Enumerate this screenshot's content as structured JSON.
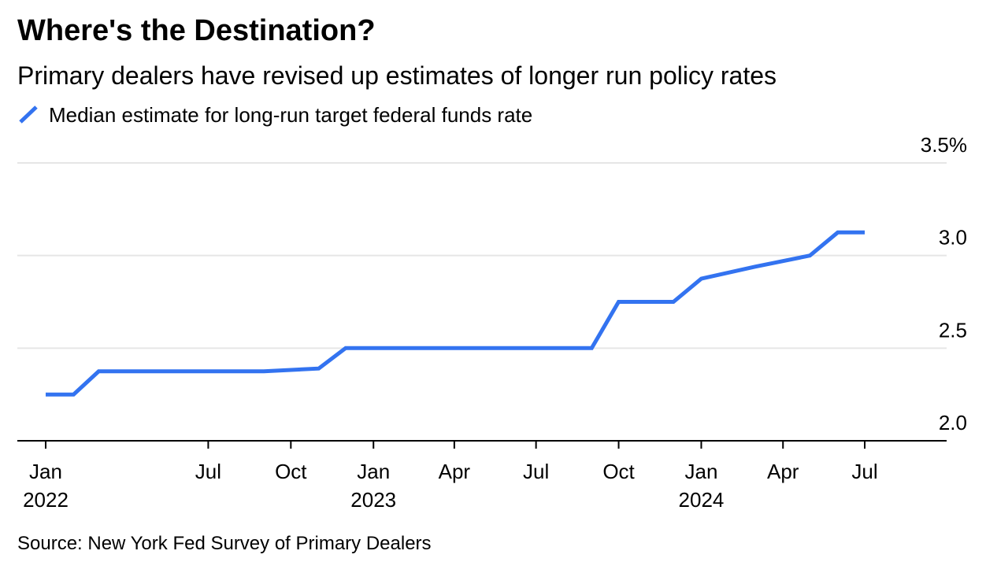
{
  "title": "Where's the Destination?",
  "subtitle": "Primary dealers have revised up estimates of longer run policy rates",
  "source": "Source: New York Fed Survey of Primary Dealers",
  "colors": {
    "series": "#3373f0",
    "gridline": "#e6e6e6",
    "axis": "#000000"
  },
  "chart_data": {
    "type": "line",
    "title": "Where's the Destination?",
    "subtitle": "Primary dealers have revised up estimates of longer run policy rates",
    "xlabel": "",
    "ylabel": "",
    "ylim": [
      2.0,
      3.5
    ],
    "xlim": [
      "2022-01-01",
      "2024-10-01"
    ],
    "grid": true,
    "legend_position": "top-left",
    "y_ticks": [
      {
        "value": 2.0,
        "label": "2.0"
      },
      {
        "value": 2.5,
        "label": "2.5"
      },
      {
        "value": 3.0,
        "label": "3.0"
      },
      {
        "value": 3.5,
        "label": "3.5%"
      }
    ],
    "x_ticks": [
      {
        "date": "2022-01-01",
        "label": "Jan",
        "year": "2022"
      },
      {
        "date": "2022-07-01",
        "label": "Jul",
        "year": ""
      },
      {
        "date": "2022-10-01",
        "label": "Oct",
        "year": ""
      },
      {
        "date": "2023-01-01",
        "label": "Jan",
        "year": "2023"
      },
      {
        "date": "2023-04-01",
        "label": "Apr",
        "year": ""
      },
      {
        "date": "2023-07-01",
        "label": "Jul",
        "year": ""
      },
      {
        "date": "2023-10-01",
        "label": "Oct",
        "year": ""
      },
      {
        "date": "2024-01-01",
        "label": "Jan",
        "year": "2024"
      },
      {
        "date": "2024-04-01",
        "label": "Apr",
        "year": ""
      },
      {
        "date": "2024-07-01",
        "label": "Jul",
        "year": ""
      }
    ],
    "series": [
      {
        "name": "Median estimate for long-run target federal funds rate",
        "color": "#3373f0",
        "points": [
          {
            "x": "2022-01-01",
            "y": 2.25
          },
          {
            "x": "2022-02-01",
            "y": 2.25
          },
          {
            "x": "2022-03-01",
            "y": 2.375
          },
          {
            "x": "2022-05-01",
            "y": 2.375
          },
          {
            "x": "2022-07-01",
            "y": 2.375
          },
          {
            "x": "2022-09-01",
            "y": 2.375
          },
          {
            "x": "2022-11-01",
            "y": 2.39
          },
          {
            "x": "2022-12-01",
            "y": 2.5
          },
          {
            "x": "2023-02-01",
            "y": 2.5
          },
          {
            "x": "2023-05-01",
            "y": 2.5
          },
          {
            "x": "2023-07-01",
            "y": 2.5
          },
          {
            "x": "2023-09-01",
            "y": 2.5
          },
          {
            "x": "2023-10-01",
            "y": 2.75
          },
          {
            "x": "2023-12-01",
            "y": 2.75
          },
          {
            "x": "2024-01-01",
            "y": 2.875
          },
          {
            "x": "2024-03-01",
            "y": 2.94
          },
          {
            "x": "2024-05-01",
            "y": 3.0
          },
          {
            "x": "2024-06-01",
            "y": 3.125
          },
          {
            "x": "2024-07-01",
            "y": 3.125
          }
        ]
      }
    ]
  }
}
